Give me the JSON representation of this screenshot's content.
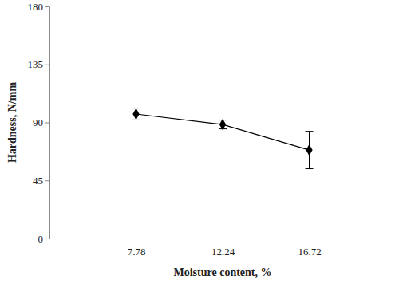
{
  "chart_data": {
    "type": "line",
    "x_label": "Moisture content, %",
    "y_label": "Hardness, N/mm",
    "categories": [
      "7.78",
      "12.24",
      "16.72"
    ],
    "values": [
      96.5,
      88.4,
      68.6
    ],
    "errors": [
      4.6,
      3.4,
      14.5
    ],
    "color": "#000000",
    "marker": "diamond",
    "ylim": [
      0,
      180
    ],
    "yticks": [
      0,
      45,
      90,
      135,
      180
    ]
  }
}
